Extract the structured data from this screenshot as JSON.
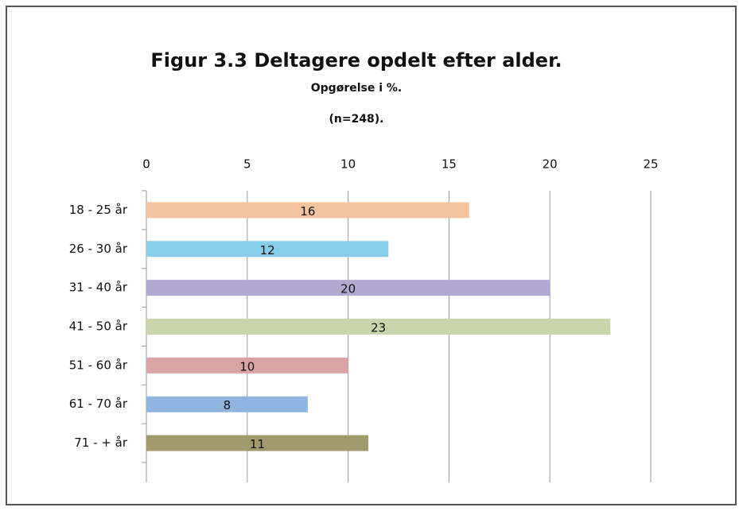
{
  "chart_data": {
    "type": "bar",
    "orientation": "horizontal",
    "title": "Figur 3.3 Deltagere opdelt efter alder.",
    "subtitle": [
      "Opgørelse i %.",
      "(n=248)."
    ],
    "categories": [
      "18 - 25 år",
      "26 - 30 år",
      "31 - 40 år",
      "41 - 50 år",
      "51 - 60 år",
      "61 - 70 år",
      "71 - + år"
    ],
    "values": [
      16,
      12,
      20,
      23,
      10,
      8,
      11
    ],
    "colors": [
      "#f4c4a0",
      "#87ceeb",
      "#b1a9d0",
      "#c9d6ac",
      "#dba4a4",
      "#8fb4e0",
      "#a09a6c"
    ],
    "xlim": [
      0,
      25
    ],
    "xticks": [
      0,
      5,
      10,
      15,
      20,
      25
    ],
    "grid": true,
    "xaxis_position": "top"
  }
}
